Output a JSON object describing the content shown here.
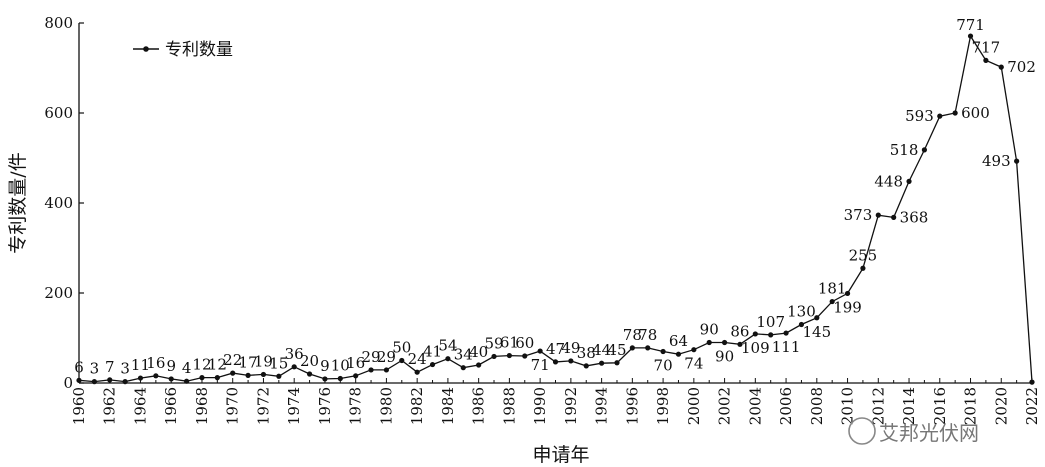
{
  "chart_data": {
    "type": "line",
    "xlabel": "申请年",
    "ylabel": "专利数量/件",
    "xlim": [
      1960,
      2022
    ],
    "ylim": [
      0,
      800
    ],
    "y_ticks": [
      0,
      200,
      400,
      600,
      800
    ],
    "x_tick_labels": [
      "1960",
      "1962",
      "1964",
      "1966",
      "1968",
      "1970",
      "1972",
      "1974",
      "1976",
      "1978",
      "1980",
      "1982",
      "1984",
      "1986",
      "1988",
      "1990",
      "1992",
      "1994",
      "1996",
      "1998",
      "2000",
      "2002",
      "2004",
      "2006",
      "2008",
      "2010",
      "2012",
      "2014",
      "2016",
      "2018",
      "2020",
      "2022"
    ],
    "legend": "top-left",
    "grid": false,
    "series": [
      {
        "name": "专利数量",
        "x": [
          1960,
          1961,
          1962,
          1963,
          1964,
          1965,
          1966,
          1967,
          1968,
          1969,
          1970,
          1971,
          1972,
          1973,
          1974,
          1975,
          1976,
          1977,
          1978,
          1979,
          1980,
          1981,
          1982,
          1983,
          1984,
          1985,
          1986,
          1987,
          1988,
          1989,
          1990,
          1991,
          1992,
          1993,
          1994,
          1995,
          1996,
          1997,
          1998,
          1999,
          2000,
          2001,
          2002,
          2003,
          2004,
          2005,
          2006,
          2007,
          2008,
          2009,
          2010,
          2011,
          2012,
          2013,
          2014,
          2015,
          2016,
          2017,
          2018,
          2019,
          2020,
          2021,
          2022
        ],
        "values": [
          6,
          3,
          7,
          3,
          11,
          16,
          9,
          4,
          12,
          12,
          22,
          17,
          19,
          15,
          36,
          20,
          9,
          10,
          16,
          29,
          29,
          50,
          24,
          41,
          54,
          34,
          40,
          59,
          61,
          60,
          71,
          47,
          49,
          38,
          44,
          45,
          78,
          78,
          70,
          64,
          74,
          90,
          90,
          86,
          109,
          107,
          111,
          130,
          145,
          181,
          199,
          255,
          373,
          368,
          448,
          518,
          593,
          600,
          771,
          717,
          702,
          493,
          2
        ]
      }
    ],
    "data_labels": [
      "6",
      "3",
      "7",
      "3",
      "11",
      "16",
      "9",
      "4",
      "12",
      "12",
      "22",
      "17",
      "19",
      "15",
      "36",
      "20",
      "9",
      "10",
      "16",
      "29",
      "29",
      "50",
      "24",
      "41",
      "54",
      "34",
      "40",
      "59",
      "61",
      "60",
      "71",
      "47",
      "49",
      "38",
      "44",
      "45",
      "78",
      "78",
      "70",
      "64",
      "74",
      "90",
      "90",
      "86",
      "109",
      "107",
      "111",
      "130",
      "145",
      "181",
      "199",
      "255",
      "373",
      "368",
      "448",
      "518",
      "593",
      "600",
      "771",
      "717",
      "702",
      "493",
      ""
    ]
  },
  "watermark": "艾邦光伏网"
}
